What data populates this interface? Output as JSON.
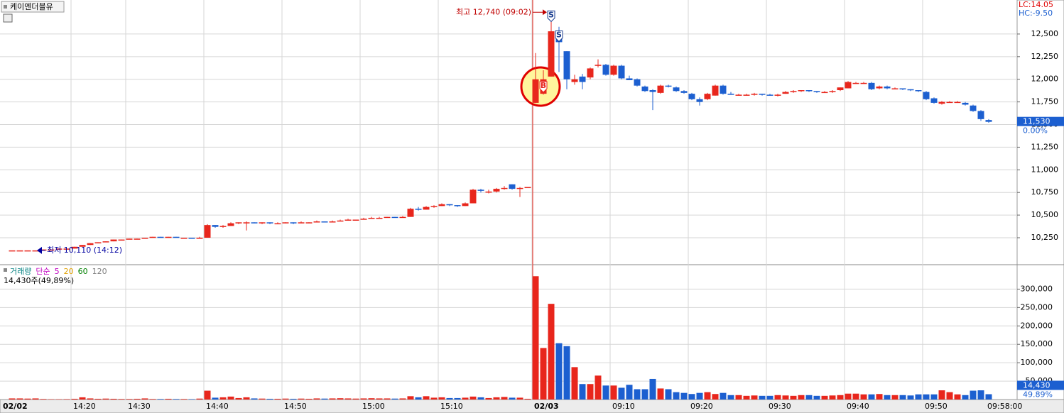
{
  "title": "케이엔더블유",
  "chart_data": [
    {
      "type": "candlestick",
      "ylim": [
        9960,
        12860
      ],
      "yticks": [
        {
          "value": 10250,
          "label": "10,250"
        },
        {
          "value": 10500,
          "label": "10,500"
        },
        {
          "value": 10750,
          "label": "10,750"
        },
        {
          "value": 11000,
          "label": "11,000"
        },
        {
          "value": 11250,
          "label": "11,250"
        },
        {
          "value": 11500,
          "label": "11,500"
        },
        {
          "value": 11750,
          "label": "11,750"
        },
        {
          "value": 12000,
          "label": "12,000"
        },
        {
          "value": 12250,
          "label": "12,250"
        },
        {
          "value": 12500,
          "label": "12,500"
        }
      ],
      "xticks": [
        {
          "value": -1,
          "label": "02/02"
        },
        {
          "value": 8,
          "label": "14:20"
        },
        {
          "value": 15,
          "label": "14:30"
        },
        {
          "value": 25,
          "label": "14:40"
        },
        {
          "value": 35,
          "label": "14:50"
        },
        {
          "value": 45,
          "label": "15:00"
        },
        {
          "value": 55,
          "label": "15:10"
        },
        {
          "value": 67,
          "label": "02/03"
        },
        {
          "value": 77,
          "label": "09:10"
        },
        {
          "value": 87,
          "label": "09:20"
        },
        {
          "value": 97,
          "label": "09:30"
        },
        {
          "value": 107,
          "label": "09:40"
        },
        {
          "value": 117,
          "label": "09:50"
        },
        {
          "value": 125,
          "label": "09:58:00"
        }
      ],
      "up_color": "#e8261c",
      "down_color": "#1c5fd0",
      "ohlc": [
        [
          10110,
          10110,
          10110,
          10110
        ],
        [
          10110,
          10110,
          10110,
          10110
        ],
        [
          10110,
          10110,
          10110,
          10110
        ],
        [
          10110,
          10110,
          10110,
          10110
        ],
        [
          10110,
          10120,
          10110,
          10120
        ],
        [
          10120,
          10120,
          10120,
          10120
        ],
        [
          10120,
          10130,
          10120,
          10130
        ],
        [
          10130,
          10130,
          10130,
          10130
        ],
        [
          10130,
          10150,
          10130,
          10150
        ],
        [
          10150,
          10170,
          10150,
          10170
        ],
        [
          10170,
          10190,
          10170,
          10190
        ],
        [
          10190,
          10200,
          10190,
          10200
        ],
        [
          10200,
          10210,
          10200,
          10210
        ],
        [
          10210,
          10230,
          10210,
          10230
        ],
        [
          10230,
          10230,
          10220,
          10230
        ],
        [
          10230,
          10240,
          10230,
          10240
        ],
        [
          10240,
          10240,
          10230,
          10240
        ],
        [
          10240,
          10250,
          10240,
          10250
        ],
        [
          10250,
          10260,
          10250,
          10260
        ],
        [
          10260,
          10260,
          10250,
          10250
        ],
        [
          10250,
          10260,
          10250,
          10260
        ],
        [
          10260,
          10260,
          10250,
          10250
        ],
        [
          10250,
          10250,
          10240,
          10250
        ],
        [
          10250,
          10250,
          10240,
          10240
        ],
        [
          10240,
          10260,
          10240,
          10250
        ],
        [
          10250,
          10400,
          10250,
          10390
        ],
        [
          10390,
          10390,
          10360,
          10370
        ],
        [
          10370,
          10390,
          10360,
          10380
        ],
        [
          10380,
          10420,
          10380,
          10410
        ],
        [
          10410,
          10420,
          10400,
          10420
        ],
        [
          10420,
          10430,
          10330,
          10420
        ],
        [
          10420,
          10420,
          10410,
          10410
        ],
        [
          10410,
          10420,
          10400,
          10420
        ],
        [
          10420,
          10420,
          10400,
          10410
        ],
        [
          10410,
          10420,
          10400,
          10410
        ],
        [
          10410,
          10420,
          10410,
          10420
        ],
        [
          10420,
          10420,
          10400,
          10410
        ],
        [
          10410,
          10430,
          10410,
          10420
        ],
        [
          10420,
          10420,
          10410,
          10420
        ],
        [
          10420,
          10440,
          10420,
          10430
        ],
        [
          10430,
          10430,
          10420,
          10420
        ],
        [
          10420,
          10440,
          10420,
          10430
        ],
        [
          10430,
          10450,
          10430,
          10440
        ],
        [
          10440,
          10460,
          10440,
          10450
        ],
        [
          10450,
          10450,
          10440,
          10450
        ],
        [
          10450,
          10470,
          10450,
          10460
        ],
        [
          10460,
          10480,
          10460,
          10470
        ],
        [
          10470,
          10480,
          10460,
          10470
        ],
        [
          10470,
          10480,
          10470,
          10480
        ],
        [
          10480,
          10480,
          10470,
          10470
        ],
        [
          10470,
          10490,
          10470,
          10480
        ],
        [
          10480,
          10580,
          10480,
          10570
        ],
        [
          10570,
          10590,
          10550,
          10560
        ],
        [
          10560,
          10600,
          10560,
          10590
        ],
        [
          10590,
          10610,
          10580,
          10600
        ],
        [
          10600,
          10630,
          10600,
          10620
        ],
        [
          10620,
          10620,
          10600,
          10610
        ],
        [
          10610,
          10610,
          10590,
          10600
        ],
        [
          10600,
          10640,
          10600,
          10630
        ],
        [
          10630,
          10790,
          10630,
          10780
        ],
        [
          10780,
          10790,
          10750,
          10770
        ],
        [
          10750,
          10780,
          10740,
          10760
        ],
        [
          10760,
          10800,
          10750,
          10790
        ],
        [
          10790,
          10820,
          10780,
          10800
        ],
        [
          10840,
          10840,
          10780,
          10790
        ],
        [
          10790,
          10810,
          10700,
          10800
        ],
        [
          10810,
          10810,
          10810,
          10810
        ],
        [
          11740,
          12290,
          11740,
          12000
        ],
        [
          11840,
          12100,
          11830,
          12000
        ],
        [
          12030,
          12740,
          12030,
          12530
        ],
        [
          12530,
          12580,
          12080,
          12410
        ],
        [
          12310,
          12310,
          11890,
          12000
        ],
        [
          11970,
          12050,
          11940,
          12000
        ],
        [
          12030,
          12060,
          11890,
          11970
        ],
        [
          12020,
          12130,
          12000,
          12120
        ],
        [
          12150,
          12220,
          12130,
          12160
        ],
        [
          12160,
          12170,
          12040,
          12050
        ],
        [
          12050,
          12160,
          12040,
          12150
        ],
        [
          12150,
          12160,
          12000,
          12010
        ],
        [
          12010,
          12040,
          11990,
          11990
        ],
        [
          12000,
          12010,
          11920,
          11930
        ],
        [
          11920,
          11930,
          11860,
          11870
        ],
        [
          11880,
          11890,
          11660,
          11860
        ],
        [
          11850,
          11940,
          11840,
          11930
        ],
        [
          11930,
          11940,
          11910,
          11920
        ],
        [
          11910,
          11920,
          11860,
          11870
        ],
        [
          11870,
          11880,
          11840,
          11850
        ],
        [
          11840,
          11850,
          11770,
          11780
        ],
        [
          11780,
          11800,
          11710,
          11750
        ],
        [
          11780,
          11850,
          11770,
          11840
        ],
        [
          11820,
          11940,
          11820,
          11930
        ],
        [
          11930,
          11940,
          11830,
          11840
        ],
        [
          11840,
          11860,
          11830,
          11830
        ],
        [
          11830,
          11840,
          11820,
          11830
        ],
        [
          11830,
          11840,
          11820,
          11830
        ],
        [
          11830,
          11850,
          11820,
          11840
        ],
        [
          11840,
          11840,
          11820,
          11830
        ],
        [
          11830,
          11840,
          11820,
          11820
        ],
        [
          11820,
          11840,
          11810,
          11830
        ],
        [
          11840,
          11870,
          11840,
          11860
        ],
        [
          11860,
          11880,
          11850,
          11870
        ],
        [
          11870,
          11880,
          11860,
          11880
        ],
        [
          11880,
          11880,
          11860,
          11870
        ],
        [
          11870,
          11870,
          11850,
          11860
        ],
        [
          11860,
          11870,
          11850,
          11860
        ],
        [
          11860,
          11880,
          11850,
          11870
        ],
        [
          11880,
          11910,
          11870,
          11910
        ],
        [
          11900,
          11980,
          11900,
          11970
        ],
        [
          11960,
          11970,
          11950,
          11960
        ],
        [
          11960,
          11970,
          11950,
          11960
        ],
        [
          11960,
          11970,
          11880,
          11890
        ],
        [
          11900,
          11930,
          11890,
          11920
        ],
        [
          11920,
          11930,
          11890,
          11900
        ],
        [
          11900,
          11910,
          11890,
          11900
        ],
        [
          11900,
          11900,
          11880,
          11890
        ],
        [
          11890,
          11890,
          11870,
          11880
        ],
        [
          11880,
          11880,
          11860,
          11870
        ],
        [
          11860,
          11870,
          11770,
          11780
        ],
        [
          11790,
          11800,
          11730,
          11740
        ],
        [
          11730,
          11760,
          11720,
          11750
        ],
        [
          11750,
          11760,
          11740,
          11750
        ],
        [
          11750,
          11760,
          11740,
          11750
        ],
        [
          11740,
          11750,
          11710,
          11720
        ],
        [
          11710,
          11720,
          11640,
          11650
        ],
        [
          11650,
          11660,
          11540,
          11560
        ],
        [
          11550,
          11560,
          11520,
          11530
        ]
      ],
      "high_point": {
        "index": 69,
        "value": 12740,
        "label": "최고 12,740 (09:02)"
      },
      "low_point": {
        "index": 3,
        "value": 10110,
        "label": "최저 10,110 (14:12)"
      },
      "signals": [
        {
          "label": "S",
          "index": 69,
          "value": 12700
        },
        {
          "label": "S",
          "index": 70,
          "value": 12480
        },
        {
          "label": "B",
          "index": 68,
          "value": 11920
        }
      ],
      "lc_label": "LC:14.05",
      "hc_label": "HC:-9.50",
      "last_price": {
        "value": 11530,
        "label": "11,530"
      },
      "change_label": "0.00%"
    },
    {
      "type": "bar",
      "legend": [
        "거래량",
        "단순",
        "5",
        "20",
        "60",
        "120"
      ],
      "legend_colors": [
        "#008080",
        "#c000c0",
        "#c000c0",
        "#e0a000",
        "#008000",
        "#808080"
      ],
      "summary": "14,430주(49,89%)",
      "ylim": [
        0,
        362500
      ],
      "yticks": [
        {
          "value": 50000,
          "label": "50,000"
        },
        {
          "value": 100000,
          "label": "100,000"
        },
        {
          "value": 150000,
          "label": "150,000"
        },
        {
          "value": 200000,
          "label": "200,000"
        },
        {
          "value": 250000,
          "label": "250,000"
        },
        {
          "value": 300000,
          "label": "300,000"
        }
      ],
      "values": [
        3000,
        3000,
        2500,
        3000,
        1500,
        1000,
        1000,
        1200,
        2000,
        6000,
        3000,
        2000,
        2500,
        2000,
        1500,
        1500,
        2000,
        3000,
        1500,
        1500,
        2000,
        1500,
        1500,
        1200,
        2500,
        24000,
        5000,
        6000,
        8000,
        4000,
        6000,
        3000,
        2500,
        2000,
        2000,
        2500,
        2000,
        2500,
        2000,
        3000,
        2500,
        3000,
        3500,
        3000,
        2500,
        3000,
        3500,
        3000,
        3000,
        2500,
        3000,
        9000,
        6000,
        9000,
        5000,
        6000,
        4000,
        4000,
        5000,
        8000,
        6000,
        4000,
        6000,
        7000,
        5000,
        5000,
        2000,
        335000,
        140000,
        260000,
        153000,
        145000,
        88000,
        42000,
        42000,
        65000,
        38000,
        38000,
        32000,
        40000,
        28000,
        28000,
        56000,
        30000,
        28000,
        20000,
        18000,
        15000,
        18000,
        20000,
        15000,
        18000,
        12000,
        12000,
        10000,
        11000,
        10000,
        10000,
        12000,
        11000,
        10000,
        12000,
        12000,
        10000,
        10000,
        11000,
        12000,
        16000,
        16000,
        14000,
        14000,
        15000,
        12000,
        12000,
        12000,
        11000,
        14000,
        14000,
        14000,
        25000,
        20000,
        14000,
        12000,
        24000,
        25000,
        14430
      ],
      "last_volume": {
        "value": 14430,
        "label": "14,430"
      },
      "ratio_label": "49.89%"
    }
  ]
}
